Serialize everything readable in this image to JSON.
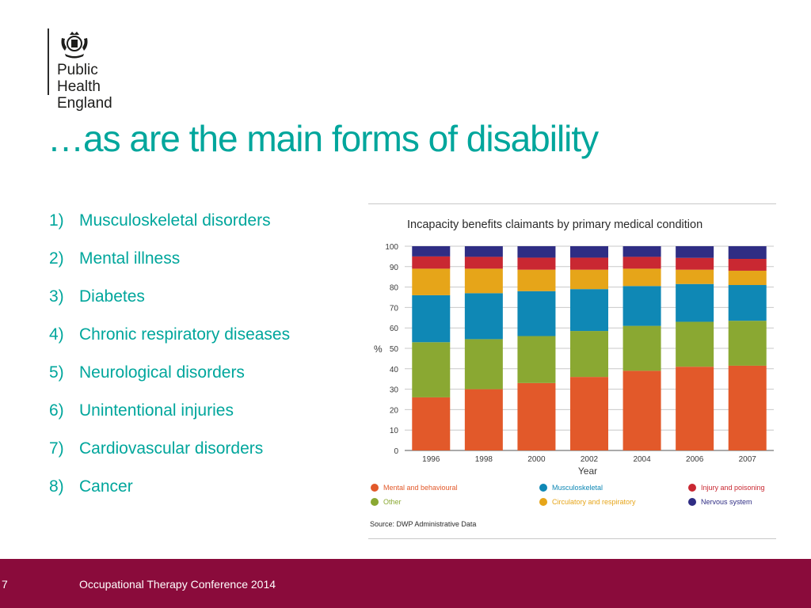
{
  "logo": {
    "line1": "Public Health",
    "line2": "England"
  },
  "title": "…as are the main forms of disability",
  "list": [
    {
      "num": "1)",
      "label": "Musculoskeletal disorders"
    },
    {
      "num": "2)",
      "label": "Mental illness"
    },
    {
      "num": "3)",
      "label": "Diabetes"
    },
    {
      "num": "4)",
      "label": "Chronic respiratory diseases"
    },
    {
      "num": "5)",
      "label": "Neurological disorders"
    },
    {
      "num": "6)",
      "label": "Unintentional injuries"
    },
    {
      "num": "7)",
      "label": "Cardiovascular disorders"
    },
    {
      "num": "8)",
      "label": "Cancer"
    }
  ],
  "chart_data": {
    "type": "bar",
    "stacked": true,
    "title": "Incapacity benefits claimants by primary medical condition",
    "xlabel": "Year",
    "ylabel": "%",
    "ylim": [
      0,
      100
    ],
    "yticks": [
      0,
      10,
      20,
      30,
      40,
      50,
      60,
      70,
      80,
      90,
      100
    ],
    "categories": [
      "1996",
      "1998",
      "2000",
      "2002",
      "2004",
      "2006",
      "2007"
    ],
    "series": [
      {
        "name": "Mental and behavioural",
        "color": "#e2592a",
        "values": [
          26,
          30,
          33,
          36,
          39,
          41,
          41.5
        ]
      },
      {
        "name": "Other",
        "color": "#8aa832",
        "values": [
          27,
          24.5,
          23,
          22.5,
          22,
          22,
          22
        ]
      },
      {
        "name": "Musculoskeletal",
        "color": "#0f88b5",
        "values": [
          23,
          22.5,
          22,
          20.5,
          19.5,
          18.5,
          17.5
        ]
      },
      {
        "name": "Circulatory and respiratory",
        "color": "#e6a519",
        "values": [
          13,
          12,
          10.5,
          9.5,
          8.5,
          7,
          7
        ]
      },
      {
        "name": "Injury and poisoning",
        "color": "#c92832",
        "values": [
          6,
          5.8,
          5.9,
          5.9,
          5.8,
          5.8,
          5.8
        ]
      },
      {
        "name": "Nervous system",
        "color": "#2f2d84",
        "values": [
          5,
          5.2,
          5.6,
          5.6,
          5.2,
          5.7,
          6.2
        ]
      }
    ],
    "legend_position": "bottom",
    "source": "Source: DWP Administrative Data"
  },
  "footer": {
    "page": "7",
    "text": "Occupational Therapy Conference 2014"
  }
}
